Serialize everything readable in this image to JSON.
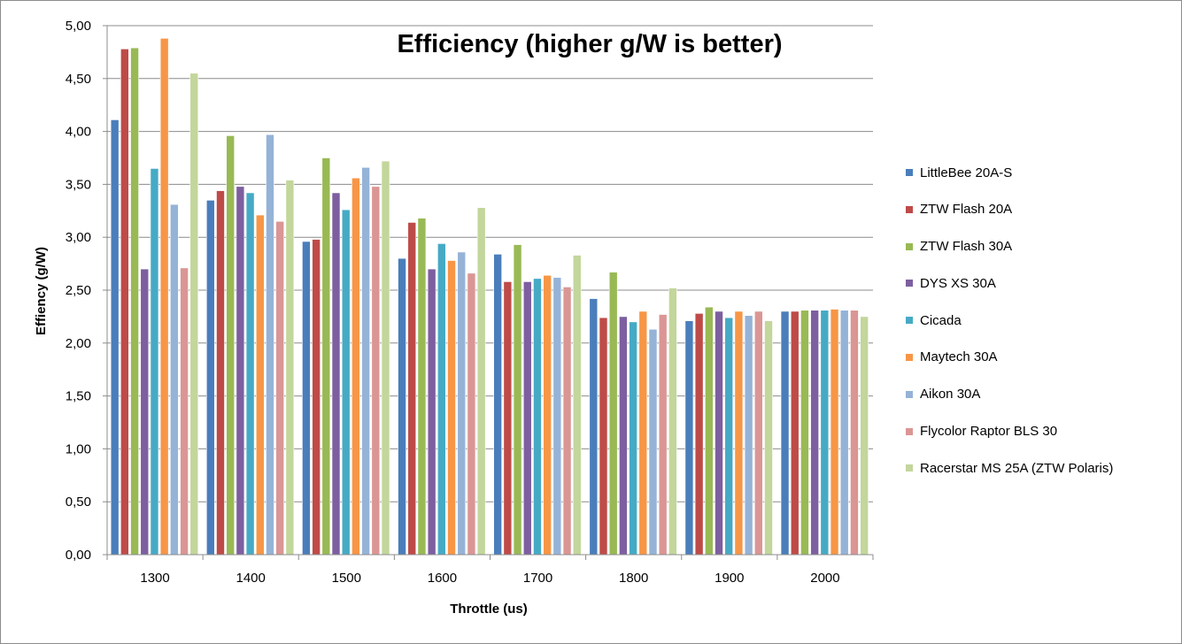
{
  "chart_data": {
    "type": "bar",
    "title": "Efficiency (higher g/W is better)",
    "xlabel": "Throttle  (us)",
    "ylabel": "Effiency (g/W)",
    "ylim": [
      0,
      5
    ],
    "yticks": [
      "0,00",
      "0,50",
      "1,00",
      "1,50",
      "2,00",
      "2,50",
      "3,00",
      "3,50",
      "4,00",
      "4,50",
      "5,00"
    ],
    "ytick_values": [
      0,
      0.5,
      1,
      1.5,
      2,
      2.5,
      3,
      3.5,
      4,
      4.5,
      5
    ],
    "categories": [
      "1300",
      "1400",
      "1500",
      "1600",
      "1700",
      "1800",
      "1900",
      "2000"
    ],
    "grid": true,
    "legend_position": "right",
    "series": [
      {
        "name": "LittleBee 20A-S",
        "color": "#4a7ebb",
        "values": [
          4.11,
          3.35,
          2.96,
          2.8,
          2.84,
          2.42,
          2.21,
          2.3
        ]
      },
      {
        "name": "ZTW Flash 20A",
        "color": "#be4b48",
        "values": [
          4.78,
          3.44,
          2.98,
          3.14,
          2.58,
          2.24,
          2.28,
          2.3
        ]
      },
      {
        "name": "ZTW Flash 30A",
        "color": "#98b954",
        "values": [
          4.79,
          3.96,
          3.75,
          3.18,
          2.93,
          2.67,
          2.34,
          2.31
        ]
      },
      {
        "name": "DYS XS 30A",
        "color": "#7d5fa0",
        "values": [
          2.7,
          3.48,
          3.42,
          2.7,
          2.58,
          2.25,
          2.3,
          2.31
        ]
      },
      {
        "name": "Cicada",
        "color": "#46aac5",
        "values": [
          3.65,
          3.42,
          3.26,
          2.94,
          2.61,
          2.2,
          2.24,
          2.31
        ]
      },
      {
        "name": "Maytech 30A",
        "color": "#f79646",
        "values": [
          4.88,
          3.21,
          3.56,
          2.78,
          2.64,
          2.3,
          2.3,
          2.32
        ]
      },
      {
        "name": "Aikon 30A",
        "color": "#95b3d7",
        "values": [
          3.31,
          3.97,
          3.66,
          2.86,
          2.62,
          2.13,
          2.26,
          2.31
        ]
      },
      {
        "name": "Flycolor Raptor BLS 30",
        "color": "#da9694",
        "values": [
          2.71,
          3.15,
          3.48,
          2.66,
          2.53,
          2.27,
          2.3,
          2.31
        ]
      },
      {
        "name": "Racerstar MS 25A (ZTW Polaris)",
        "color": "#c3d69b",
        "values": [
          4.55,
          3.54,
          3.72,
          3.28,
          2.83,
          2.52,
          2.21,
          2.25
        ]
      }
    ]
  }
}
